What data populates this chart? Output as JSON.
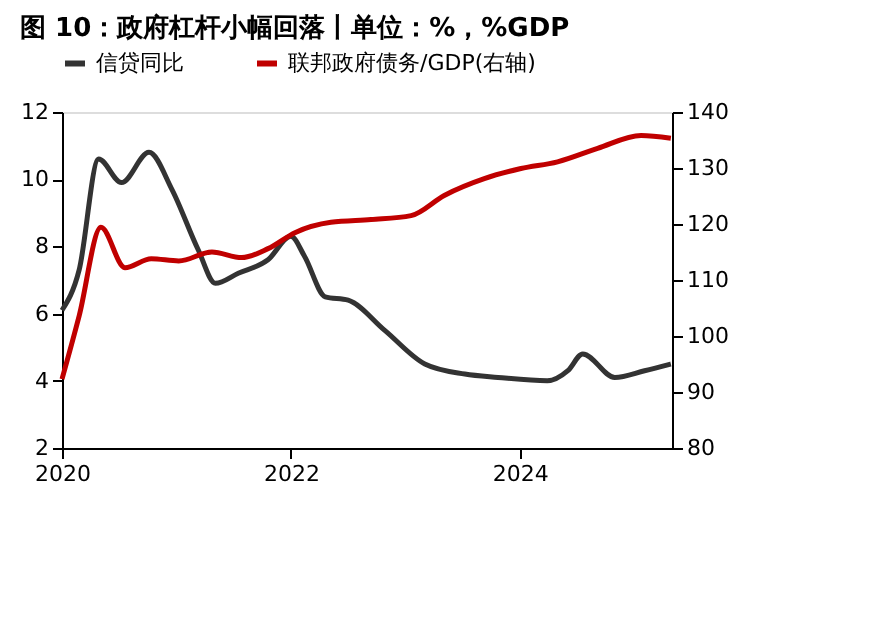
{
  "chart_data": {
    "type": "line",
    "title": "图 10：政府杠杆小幅回落丨单位：%，%GDP",
    "legend": "top",
    "xlim": [
      2020,
      2025.33
    ],
    "xticks": [
      2020,
      2022,
      2024
    ],
    "ylim": [
      2,
      12
    ],
    "yticks": [
      2,
      4,
      6,
      8,
      10,
      12
    ],
    "y2lim": [
      80,
      140
    ],
    "y2ticks": [
      80,
      90,
      100,
      110,
      120,
      130,
      140
    ],
    "series": [
      {
        "name": "信贷同比",
        "color": "#333333",
        "x": [
          2020.0,
          2020.15,
          2020.32,
          2020.52,
          2020.76,
          2020.96,
          2021.19,
          2021.34,
          2021.54,
          2021.8,
          2022.0,
          2022.12,
          2022.3,
          2022.5,
          2022.82,
          2023.17,
          2023.52,
          2023.81,
          2024.24,
          2024.42,
          2024.55,
          2024.83,
          2025.09,
          2025.32
        ],
        "values": [
          6.1,
          7.3,
          10.6,
          9.9,
          10.8,
          9.7,
          7.9,
          6.9,
          7.2,
          7.6,
          8.3,
          7.7,
          6.5,
          6.4,
          5.5,
          4.5,
          4.2,
          4.1,
          4.0,
          4.3,
          4.8,
          4.1,
          4.3,
          4.5
        ]
      },
      {
        "name": "联邦政府债务/GDP(右轴)",
        "color": "#c00000",
        "axis": "y2",
        "x": [
          2020.0,
          2020.15,
          2020.34,
          2020.55,
          2020.78,
          2021.02,
          2021.31,
          2021.57,
          2021.8,
          2022.04,
          2022.35,
          2022.7,
          2023.05,
          2023.34,
          2023.69,
          2024.01,
          2024.33,
          2024.68,
          2025.06,
          2025.32
        ],
        "values": [
          92.3,
          103.6,
          119.4,
          112.2,
          113.8,
          113.4,
          115.0,
          114.0,
          115.6,
          118.5,
          120.3,
          120.8,
          121.5,
          125.1,
          128.1,
          129.9,
          131.1,
          133.5,
          135.8,
          135.3
        ]
      }
    ]
  }
}
